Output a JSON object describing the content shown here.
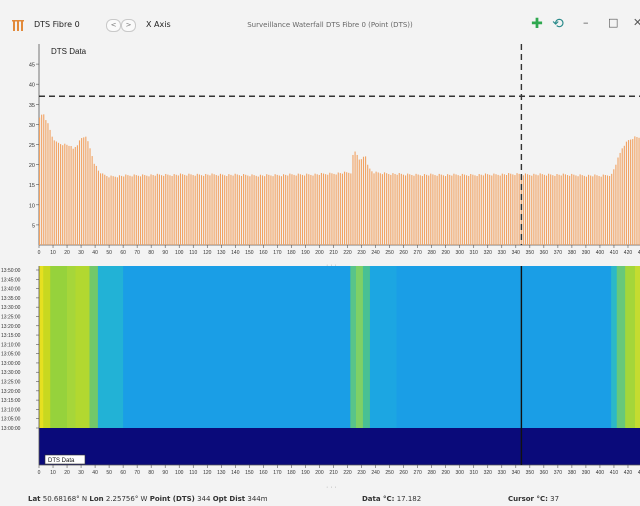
{
  "app": {
    "name": "DTS Fibre 0",
    "axis_label": "X Axis",
    "window_title": "Surveillance Waterfall DTS Fibre 0 (Point (DTS))"
  },
  "nav": {
    "back": "<",
    "forward": ">"
  },
  "window_buttons": {
    "minimize": "–",
    "maximize": "□",
    "close": "✕"
  },
  "colors": {
    "bars": "#f1a262",
    "add_icon": "#2fa84f",
    "refresh_icon": "#2a8a8a",
    "app_icon": "#e28a3b",
    "deep_band": "#0a0a7a"
  },
  "chart_data": [
    {
      "type": "bar",
      "title": "DTS Data",
      "ylim": [
        0,
        50
      ],
      "yticks": [
        "5",
        "10",
        "15",
        "20",
        "25",
        "30",
        "35",
        "40",
        "45"
      ],
      "xlim": [
        0,
        430
      ],
      "xticks": [
        "0",
        "10",
        "20",
        "30",
        "40",
        "50",
        "60",
        "70",
        "80",
        "90",
        "100",
        "110",
        "120",
        "130",
        "140",
        "150",
        "160",
        "170",
        "180",
        "190",
        "200",
        "210",
        "220",
        "230",
        "240",
        "250",
        "260",
        "270",
        "280",
        "290",
        "300",
        "310",
        "320",
        "330",
        "340",
        "350",
        "360",
        "370",
        "380",
        "390",
        "400",
        "410",
        "420",
        "430"
      ],
      "threshold": 37,
      "cursor_x": 344,
      "grid": true,
      "profile": [
        [
          0,
          32
        ],
        [
          3,
          32.5
        ],
        [
          6,
          30
        ],
        [
          9,
          27
        ],
        [
          12,
          25.5
        ],
        [
          15,
          25.2
        ],
        [
          18,
          25
        ],
        [
          21,
          24.8
        ],
        [
          24,
          23.8
        ],
        [
          27,
          25
        ],
        [
          30,
          26.5
        ],
        [
          33,
          27.2
        ],
        [
          36,
          24
        ],
        [
          39,
          20.5
        ],
        [
          42,
          18.5
        ],
        [
          45,
          17.5
        ],
        [
          50,
          17
        ],
        [
          60,
          17.2
        ],
        [
          80,
          17.4
        ],
        [
          120,
          17.5
        ],
        [
          160,
          17.3
        ],
        [
          200,
          17.6
        ],
        [
          222,
          18
        ],
        [
          224,
          23.5
        ],
        [
          226,
          22.8
        ],
        [
          228,
          21.5
        ],
        [
          230,
          21
        ],
        [
          232,
          22.8
        ],
        [
          235,
          19
        ],
        [
          238,
          18
        ],
        [
          260,
          17.5
        ],
        [
          300,
          17.4
        ],
        [
          340,
          17.6
        ],
        [
          360,
          17.5
        ],
        [
          380,
          17.4
        ],
        [
          400,
          17.2
        ],
        [
          408,
          17.5
        ],
        [
          412,
          21
        ],
        [
          416,
          24.5
        ],
        [
          420,
          26
        ],
        [
          424,
          26.8
        ],
        [
          430,
          26.8
        ]
      ]
    },
    {
      "type": "heatmap",
      "title": "DTS Data",
      "y_tick_labels": [
        "13:50:00",
        "13:45:00",
        "13:40:00",
        "13:35:00",
        "13:30:00",
        "13:25:00",
        "13:20:00",
        "13:15:00",
        "13:10:00",
        "13:05:00",
        "13:00:00",
        "13:30:00",
        "13:25:00",
        "13:20:00",
        "13:15:00",
        "13:10:00",
        "13:05:00",
        "13:00:00"
      ],
      "xlim": [
        0,
        430
      ],
      "xticks": [
        "0",
        "10",
        "20",
        "30",
        "40",
        "50",
        "60",
        "70",
        "80",
        "90",
        "100",
        "110",
        "120",
        "130",
        "140",
        "150",
        "160",
        "170",
        "180",
        "190",
        "200",
        "210",
        "220",
        "230",
        "240",
        "250",
        "260",
        "270",
        "280",
        "290",
        "300",
        "310",
        "320",
        "330",
        "340",
        "350",
        "360",
        "370",
        "380",
        "390",
        "400",
        "410",
        "420",
        "430"
      ],
      "cursor_x": 344,
      "bands": [
        {
          "x0": 0,
          "x1": 3,
          "color": "#e6e020"
        },
        {
          "x0": 3,
          "x1": 8,
          "color": "#c8d820"
        },
        {
          "x0": 8,
          "x1": 20,
          "color": "#96d23c"
        },
        {
          "x0": 20,
          "x1": 26,
          "color": "#a6d63a"
        },
        {
          "x0": 26,
          "x1": 36,
          "color": "#b2d830"
        },
        {
          "x0": 36,
          "x1": 42,
          "color": "#72c86a"
        },
        {
          "x0": 42,
          "x1": 60,
          "color": "#22b2d6"
        },
        {
          "x0": 60,
          "x1": 222,
          "color": "#1a9ee6"
        },
        {
          "x0": 222,
          "x1": 226,
          "color": "#58c48a"
        },
        {
          "x0": 226,
          "x1": 231,
          "color": "#7ed066"
        },
        {
          "x0": 231,
          "x1": 236,
          "color": "#48c094"
        },
        {
          "x0": 236,
          "x1": 255,
          "color": "#1ca6e2"
        },
        {
          "x0": 255,
          "x1": 408,
          "color": "#1a9ee6"
        },
        {
          "x0": 408,
          "x1": 412,
          "color": "#2cb8c8"
        },
        {
          "x0": 412,
          "x1": 418,
          "color": "#68c87a"
        },
        {
          "x0": 418,
          "x1": 425,
          "color": "#a4d63a"
        },
        {
          "x0": 425,
          "x1": 430,
          "color": "#c4dc30"
        }
      ]
    }
  ],
  "status": {
    "lat_label": "Lat",
    "lat_value": "50.68168° N",
    "lon_label": "Lon",
    "lon_value": "2.25756° W",
    "point_label": "Point (DTS)",
    "point_value": "344",
    "dist_label": "Opt Dist",
    "dist_value": "344m",
    "data_label": "Data °C:",
    "data_value": "17.182",
    "cursor_label": "Cursor °C:",
    "cursor_value": "37"
  }
}
